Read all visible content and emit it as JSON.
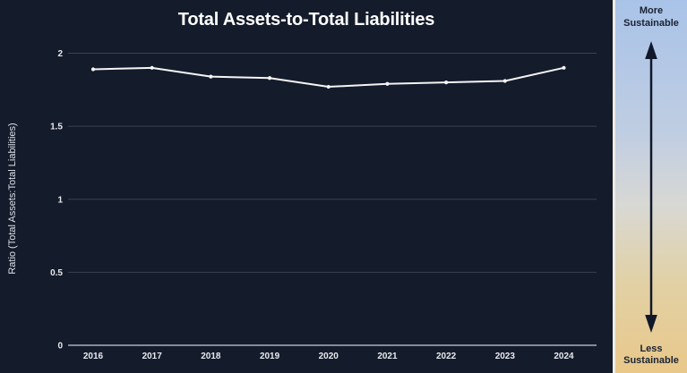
{
  "chart_data": {
    "type": "line",
    "title": "Total Assets-to-Total Liabilities",
    "xlabel": "",
    "ylabel": "Ratio (Total Assets:Total Liabilities)",
    "categories": [
      "2016",
      "2017",
      "2018",
      "2019",
      "2020",
      "2021",
      "2022",
      "2023",
      "2024"
    ],
    "values": [
      1.89,
      1.9,
      1.84,
      1.83,
      1.77,
      1.79,
      1.8,
      1.81,
      1.9
    ],
    "ylim": [
      0,
      2
    ],
    "yticks": [
      "0",
      "0.5",
      "1",
      "1.5",
      "2"
    ],
    "grid": true,
    "legend_position": "none",
    "marker": "circle"
  },
  "sidebar": {
    "top_label": "More Sustainable",
    "bottom_label": "Less Sustainable",
    "arrow_icon": "up-down-arrow",
    "arrow_color": "#10182a",
    "label_color": "#1a2233",
    "gradient_stops": [
      "#a9c3e8 0%",
      "#bfcde2 35%",
      "#d8d8d4 55%",
      "#e1d1a6 75%",
      "#e9c88a 100%"
    ]
  },
  "colors": {
    "background": "#141b2b",
    "gridline": "#3a4254",
    "axis_line": "#aab0bc",
    "line": "#f5f5f5",
    "tick_text": "#e8eaee",
    "title_text": "#ffffff"
  }
}
